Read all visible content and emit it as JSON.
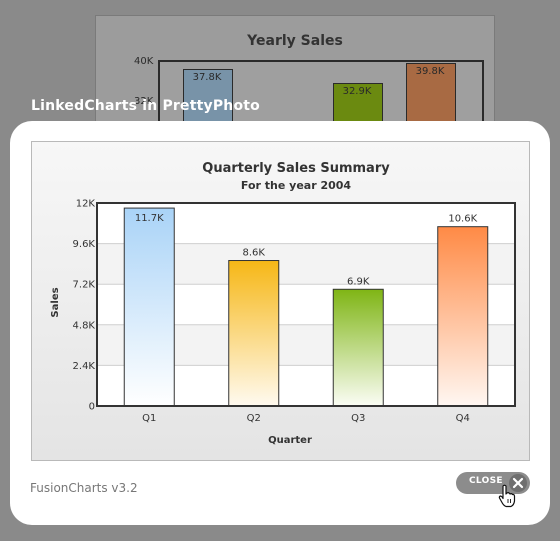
{
  "background_chart": {
    "title": "Yearly Sales",
    "visible_ticks": [
      "40K",
      "32K"
    ],
    "bars": [
      {
        "label": "37.8K",
        "value": 37.8,
        "color": "#7893a8"
      },
      {
        "label": "32.9K",
        "value": 32.9,
        "color": "#6b8a10"
      },
      {
        "label": "39.8K",
        "value": 39.8,
        "color": "#a86a43"
      }
    ]
  },
  "overlay": {
    "title": "LinkedCharts in PrettyPhoto",
    "footer": "FusionCharts v3.2",
    "close_label": "CLOSE"
  },
  "chart_data": {
    "type": "bar",
    "title": "Quarterly Sales Summary",
    "subtitle": "For the year 2004",
    "xlabel": "Quarter",
    "ylabel": "Sales",
    "categories": [
      "Q1",
      "Q2",
      "Q3",
      "Q4"
    ],
    "values": [
      11.7,
      8.6,
      6.9,
      10.6
    ],
    "value_labels": [
      "11.7K",
      "8.6K",
      "6.9K",
      "10.6K"
    ],
    "y_ticks": [
      0,
      2.4,
      4.8,
      7.2,
      9.6,
      12
    ],
    "y_tick_labels": [
      "0",
      "2.4K",
      "4.8K",
      "7.2K",
      "9.6K",
      "12K"
    ],
    "ylim": [
      0,
      12
    ],
    "grid": true,
    "bar_colors": [
      [
        "#a9d3f7",
        "#ffffff"
      ],
      [
        "#f6b716",
        "#fffaf0"
      ],
      [
        "#7fb515",
        "#fbfdf5"
      ],
      [
        "#ff8a45",
        "#fff7f2"
      ]
    ]
  }
}
